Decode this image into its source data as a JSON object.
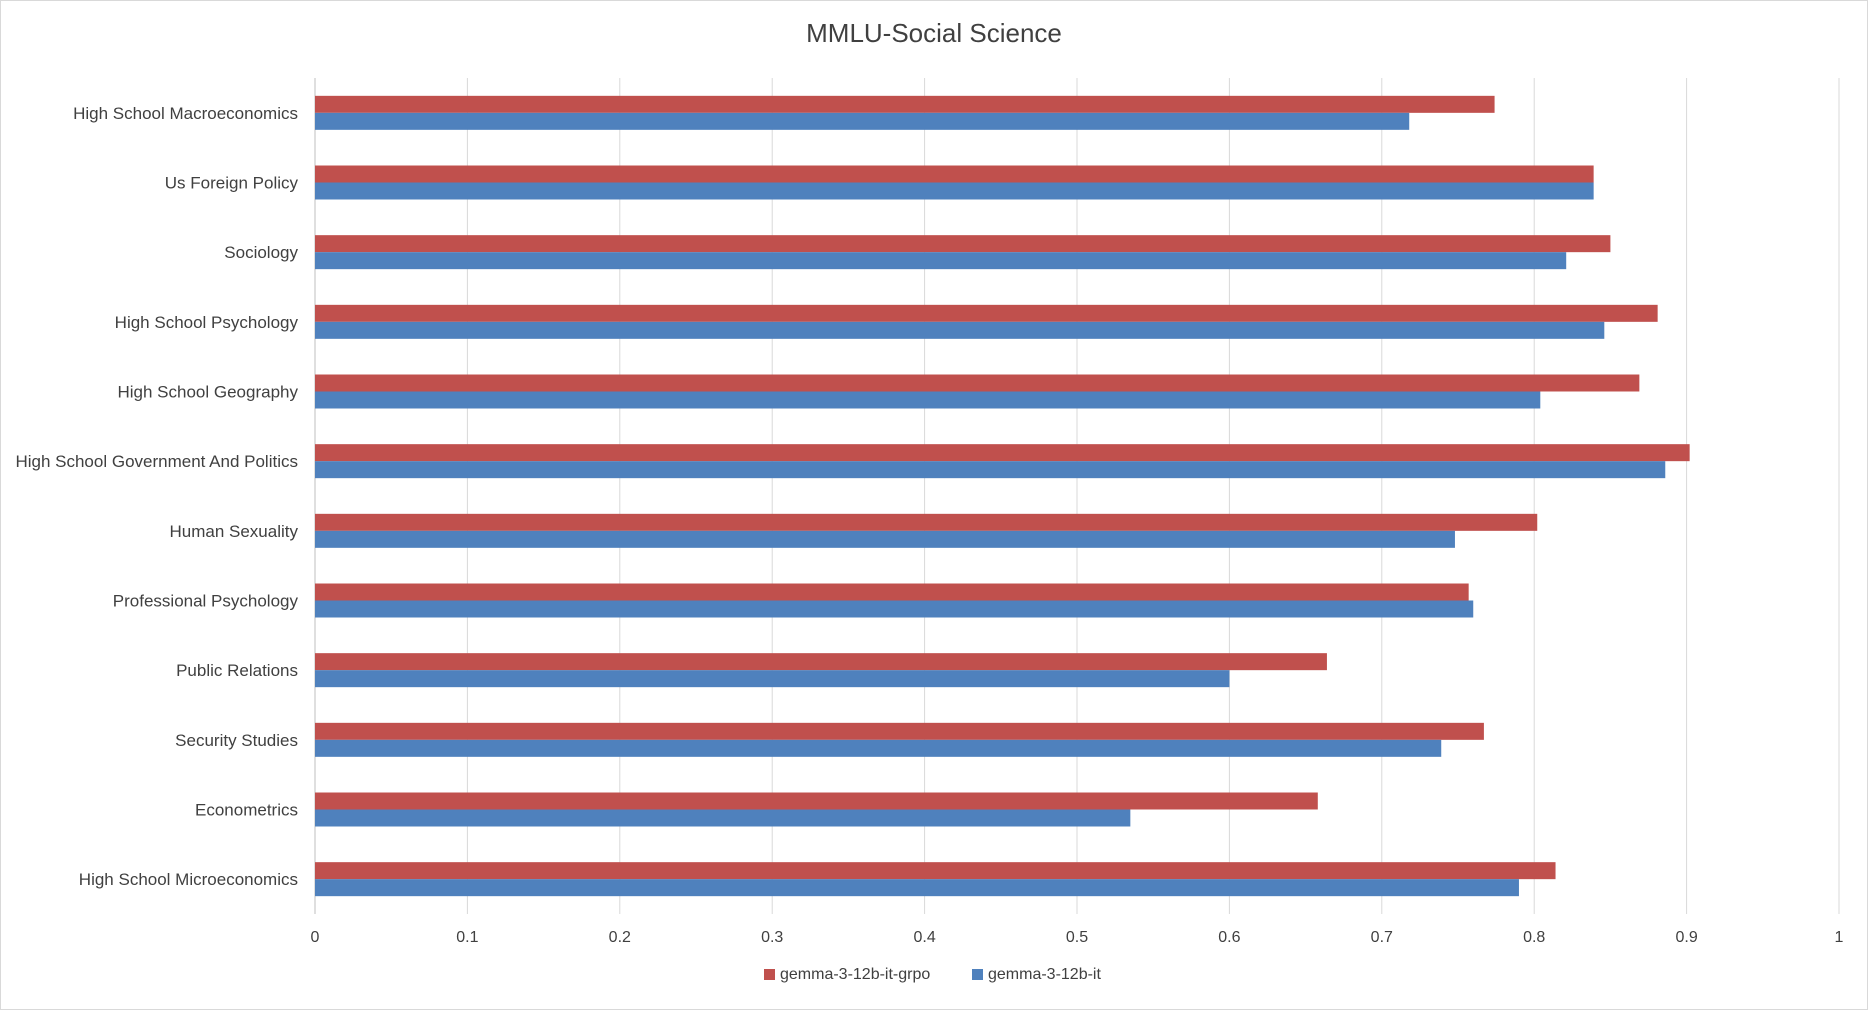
{
  "chart_data": {
    "type": "bar",
    "orientation": "horizontal",
    "title": "MMLU-Social Science",
    "xlabel": "",
    "ylabel": "",
    "xlim": [
      0,
      1
    ],
    "xticks": [
      "0",
      "0.1",
      "0.2",
      "0.3",
      "0.4",
      "0.5",
      "0.6",
      "0.7",
      "0.8",
      "0.9",
      "1"
    ],
    "grid": "vertical",
    "legend_position": "bottom",
    "categories": [
      "High School Macroeconomics",
      "Us Foreign Policy",
      "Sociology",
      "High School Psychology",
      "High School Geography",
      "High School Government And Politics",
      "Human Sexuality",
      "Professional Psychology",
      "Public Relations",
      "Security Studies",
      "Econometrics",
      "High School Microeconomics"
    ],
    "series": [
      {
        "name": "gemma-3-12b-it-grpo",
        "color": "#c0504d",
        "values": [
          0.774,
          0.839,
          0.85,
          0.881,
          0.869,
          0.902,
          0.802,
          0.757,
          0.664,
          0.767,
          0.658,
          0.814
        ]
      },
      {
        "name": "gemma-3-12b-it",
        "color": "#4f81bd",
        "values": [
          0.718,
          0.839,
          0.821,
          0.846,
          0.804,
          0.886,
          0.748,
          0.76,
          0.6,
          0.739,
          0.535,
          0.79
        ]
      }
    ],
    "legend_order": [
      0,
      1
    ]
  }
}
